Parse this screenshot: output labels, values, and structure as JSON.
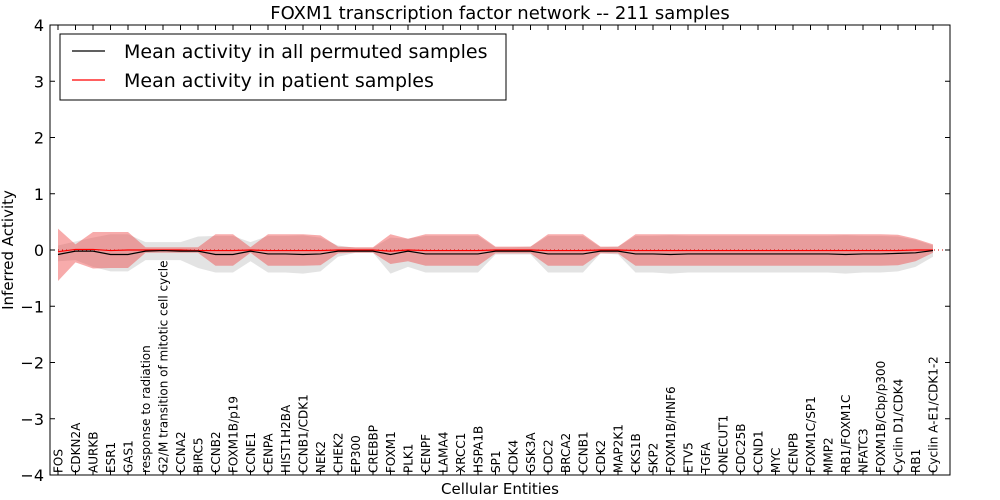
{
  "chart_data": {
    "type": "line",
    "title": "FOXM1 transcription factor network -- 211 samples",
    "xlabel": "Cellular Entities",
    "ylabel": "Inferred Activity",
    "ylim": [
      -4,
      4
    ],
    "yticks": [
      -4,
      -3,
      -2,
      -1,
      0,
      1,
      2,
      3,
      4
    ],
    "ytick_labels": [
      "−4",
      "−3",
      "−2",
      "−1",
      "0",
      "1",
      "2",
      "3",
      "4"
    ],
    "legend_position": "top-left",
    "categories": [
      "FOS",
      "CDKN2A",
      "AURKB",
      "ESR1",
      "GAS1",
      "response to radiation",
      "G2/M transition of mitotic cell cycle",
      "CCNA2",
      "BIRC5",
      "CCNB2",
      "FOXM1B/p19",
      "CCNE1",
      "CENPA",
      "HIST1H2BA",
      "CCNB1/CDK1",
      "NEK2",
      "CHEK2",
      "EP300",
      "CREBBP",
      "FOXM1",
      "PLK1",
      "CENPF",
      "LAMA4",
      "XRCC1",
      "HSPA1B",
      "SP1",
      "CDK4",
      "GSK3A",
      "CDC2",
      "BRCA2",
      "CCNB1",
      "CDK2",
      "MAP2K1",
      "CKS1B",
      "SKP2",
      "FOXM1B/HNF6",
      "ETV5",
      "TGFA",
      "ONECUT1",
      "CDC25B",
      "CCND1",
      "MYC",
      "CENPB",
      "FOXM1C/SP1",
      "MMP2",
      "RB1/FOXM1C",
      "NFATC3",
      "FOXM1B/Cbp/p300",
      "Cyclin D1/CDK4",
      "RB1",
      "Cyclin A-E1/CDK1-2"
    ],
    "series": [
      {
        "name": "Mean activity in all permuted samples",
        "color": "#000000",
        "values": [
          -0.08,
          -0.02,
          -0.02,
          -0.08,
          -0.08,
          -0.02,
          -0.01,
          -0.02,
          -0.02,
          -0.08,
          -0.08,
          -0.02,
          -0.07,
          -0.07,
          -0.08,
          -0.07,
          -0.02,
          -0.02,
          -0.02,
          -0.08,
          -0.02,
          -0.07,
          -0.07,
          -0.07,
          -0.07,
          -0.02,
          -0.02,
          -0.02,
          -0.07,
          -0.07,
          -0.07,
          -0.02,
          -0.02,
          -0.07,
          -0.07,
          -0.08,
          -0.07,
          -0.07,
          -0.07,
          -0.07,
          -0.07,
          -0.07,
          -0.07,
          -0.07,
          -0.07,
          -0.08,
          -0.07,
          -0.07,
          -0.06,
          -0.05,
          -0.01
        ],
        "band_lower": [
          -0.2,
          -0.18,
          -0.3,
          -0.38,
          -0.38,
          -0.18,
          -0.18,
          -0.18,
          -0.32,
          -0.4,
          -0.4,
          -0.2,
          -0.4,
          -0.4,
          -0.42,
          -0.38,
          -0.12,
          -0.05,
          -0.05,
          -0.42,
          -0.3,
          -0.4,
          -0.4,
          -0.4,
          -0.4,
          -0.08,
          -0.08,
          -0.08,
          -0.4,
          -0.4,
          -0.4,
          -0.06,
          -0.08,
          -0.4,
          -0.4,
          -0.42,
          -0.4,
          -0.4,
          -0.4,
          -0.4,
          -0.4,
          -0.4,
          -0.4,
          -0.4,
          -0.4,
          -0.42,
          -0.4,
          -0.4,
          -0.38,
          -0.3,
          -0.12
        ],
        "band_upper": [
          0.08,
          0.15,
          0.22,
          0.28,
          0.28,
          0.14,
          0.14,
          0.14,
          0.24,
          0.25,
          0.25,
          0.14,
          0.25,
          0.25,
          0.26,
          0.22,
          0.08,
          0.04,
          0.04,
          0.22,
          0.2,
          0.25,
          0.25,
          0.25,
          0.25,
          0.05,
          0.05,
          0.06,
          0.25,
          0.25,
          0.25,
          0.05,
          0.06,
          0.25,
          0.25,
          0.26,
          0.25,
          0.25,
          0.25,
          0.25,
          0.25,
          0.25,
          0.25,
          0.25,
          0.25,
          0.26,
          0.25,
          0.25,
          0.24,
          0.18,
          0.08
        ]
      },
      {
        "name": "Mean activity in patient samples",
        "color": "#ff0000",
        "values": [
          -0.03,
          0.01,
          0.01,
          -0.01,
          0.0,
          0.0,
          0.0,
          0.0,
          -0.01,
          -0.01,
          -0.01,
          0.0,
          -0.01,
          -0.01,
          -0.01,
          -0.01,
          0.0,
          0.0,
          0.0,
          -0.02,
          0.0,
          -0.01,
          -0.01,
          -0.01,
          -0.01,
          0.0,
          0.0,
          0.0,
          -0.01,
          -0.01,
          -0.01,
          0.0,
          0.0,
          -0.01,
          -0.01,
          -0.01,
          -0.01,
          -0.01,
          -0.01,
          -0.01,
          -0.01,
          -0.01,
          -0.01,
          -0.01,
          -0.01,
          -0.01,
          -0.01,
          -0.01,
          -0.01,
          0.0,
          0.0
        ],
        "band_lower": [
          -0.55,
          -0.22,
          -0.33,
          -0.32,
          -0.32,
          -0.05,
          -0.05,
          -0.05,
          -0.05,
          -0.28,
          -0.28,
          -0.05,
          -0.28,
          -0.28,
          -0.28,
          -0.27,
          -0.06,
          -0.05,
          -0.05,
          -0.25,
          -0.2,
          -0.28,
          -0.28,
          -0.28,
          -0.28,
          -0.06,
          -0.06,
          -0.06,
          -0.28,
          -0.28,
          -0.28,
          -0.06,
          -0.06,
          -0.28,
          -0.28,
          -0.28,
          -0.28,
          -0.28,
          -0.28,
          -0.28,
          -0.28,
          -0.28,
          -0.28,
          -0.28,
          -0.28,
          -0.28,
          -0.28,
          -0.28,
          -0.27,
          -0.2,
          -0.05
        ],
        "band_upper": [
          0.38,
          0.1,
          0.32,
          0.32,
          0.32,
          0.05,
          0.05,
          0.05,
          0.05,
          0.28,
          0.28,
          0.05,
          0.28,
          0.28,
          0.28,
          0.26,
          0.06,
          0.05,
          0.05,
          0.28,
          0.2,
          0.28,
          0.28,
          0.28,
          0.28,
          0.06,
          0.06,
          0.06,
          0.28,
          0.28,
          0.28,
          0.06,
          0.06,
          0.28,
          0.28,
          0.28,
          0.28,
          0.28,
          0.28,
          0.28,
          0.28,
          0.28,
          0.28,
          0.28,
          0.28,
          0.28,
          0.28,
          0.28,
          0.27,
          0.2,
          0.1
        ]
      }
    ],
    "permuted_band_color": "#cccccc",
    "patient_band_color": "#ee4444",
    "reference_line": 0
  }
}
